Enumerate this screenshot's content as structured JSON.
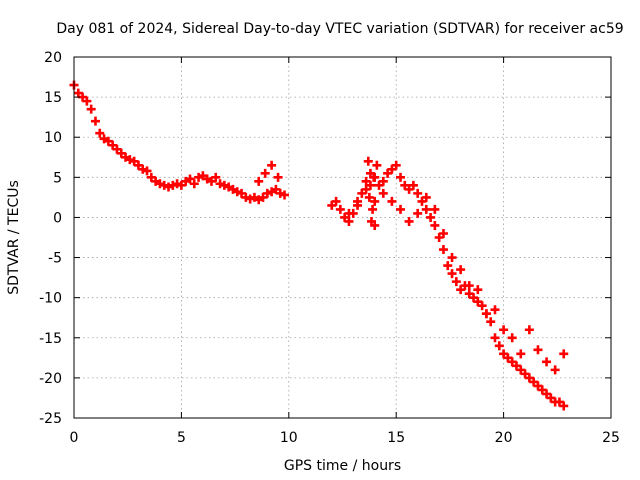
{
  "chart_data": {
    "type": "scatter",
    "title": "Day 081 of 2024, Sidereal Day-to-day VTEC variation (SDTVAR) for receiver ac59",
    "xlabel": "GPS time / hours",
    "ylabel": "SDTVAR / TECUs",
    "xlim": [
      0,
      25
    ],
    "ylim": [
      -25,
      20
    ],
    "xticks": [
      0,
      5,
      10,
      15,
      20,
      25
    ],
    "yticks": [
      -25,
      -20,
      -15,
      -10,
      -5,
      0,
      5,
      10,
      15,
      20
    ],
    "grid": true,
    "marker": "+",
    "series": [
      {
        "name": "SDTVAR",
        "color": "#ff0000",
        "x": [
          0.0,
          0.2,
          0.4,
          0.6,
          0.8,
          1.0,
          1.2,
          1.4,
          1.6,
          1.8,
          2.0,
          2.2,
          2.4,
          2.6,
          2.8,
          3.0,
          3.2,
          3.4,
          3.6,
          3.8,
          4.0,
          4.2,
          4.4,
          4.6,
          4.8,
          5.0,
          5.2,
          5.4,
          5.6,
          5.8,
          6.0,
          6.2,
          6.4,
          6.6,
          6.8,
          7.0,
          7.2,
          7.4,
          7.6,
          7.8,
          8.0,
          8.2,
          8.4,
          8.6,
          8.8,
          9.0,
          9.2,
          9.4,
          9.6,
          9.8,
          8.6,
          8.9,
          9.2,
          9.5,
          12.0,
          12.2,
          12.4,
          12.6,
          12.8,
          13.0,
          13.2,
          13.4,
          13.6,
          13.8,
          14.0,
          14.2,
          14.4,
          14.6,
          14.8,
          15.0,
          15.2,
          15.4,
          15.6,
          15.8,
          16.0,
          16.2,
          16.4,
          16.6,
          16.8,
          17.0,
          17.2,
          17.4,
          17.6,
          17.8,
          18.0,
          18.2,
          18.4,
          18.6,
          18.8,
          19.0,
          19.2,
          19.4,
          19.6,
          19.8,
          20.0,
          20.2,
          20.4,
          20.6,
          20.8,
          21.0,
          21.2,
          21.4,
          21.6,
          21.8,
          22.0,
          22.2,
          22.4,
          22.6,
          22.8,
          12.8,
          13.2,
          13.6,
          14.0,
          14.4,
          14.8,
          15.2,
          15.6,
          16.0,
          16.4,
          16.8,
          17.2,
          17.6,
          18.0,
          18.4,
          18.8,
          19.2,
          19.6,
          20.0,
          20.4,
          20.8,
          21.2,
          21.6,
          22.0,
          22.4,
          22.8,
          13.7,
          13.8,
          13.9,
          14.0,
          14.1,
          13.75,
          13.85,
          13.95
        ],
        "y": [
          16.5,
          15.5,
          15.0,
          14.5,
          13.5,
          12.0,
          10.5,
          9.8,
          9.5,
          9.0,
          8.5,
          8.0,
          7.5,
          7.2,
          7.0,
          6.5,
          6.0,
          5.8,
          5.0,
          4.5,
          4.2,
          4.0,
          3.8,
          4.0,
          4.2,
          4.0,
          4.5,
          4.8,
          4.2,
          5.0,
          5.2,
          4.8,
          4.5,
          5.0,
          4.2,
          4.0,
          3.8,
          3.5,
          3.2,
          3.0,
          2.5,
          2.3,
          2.5,
          2.2,
          2.5,
          3.0,
          3.2,
          3.5,
          3.0,
          2.8,
          4.5,
          5.5,
          6.5,
          5.0,
          1.5,
          2.0,
          1.0,
          0.0,
          -0.5,
          0.5,
          2.0,
          3.0,
          4.5,
          5.5,
          5.0,
          4.0,
          4.5,
          5.5,
          6.0,
          6.5,
          5.0,
          4.0,
          3.5,
          4.0,
          3.0,
          2.0,
          1.0,
          0.0,
          -1.0,
          -2.5,
          -4.0,
          -6.0,
          -7.0,
          -8.0,
          -9.0,
          -8.5,
          -9.5,
          -10.0,
          -10.5,
          -11.0,
          -12.0,
          -13.0,
          -15.0,
          -16.0,
          -17.0,
          -17.5,
          -18.0,
          -18.5,
          -19.0,
          -19.5,
          -20.0,
          -20.5,
          -21.0,
          -21.5,
          -22.0,
          -22.5,
          -23.0,
          -23.0,
          -23.5,
          0.5,
          1.5,
          3.5,
          2.0,
          3.0,
          2.0,
          1.0,
          -0.5,
          0.5,
          2.5,
          1.0,
          -2.0,
          -5.0,
          -6.5,
          -8.5,
          -9.0,
          -12.0,
          -11.5,
          -14.0,
          -15.0,
          -17.0,
          -14.0,
          -16.5,
          -18.0,
          -19.0,
          -17.0,
          7.0,
          4.0,
          1.0,
          -1.0,
          6.5,
          2.5,
          -0.5,
          5.0
        ]
      }
    ]
  }
}
